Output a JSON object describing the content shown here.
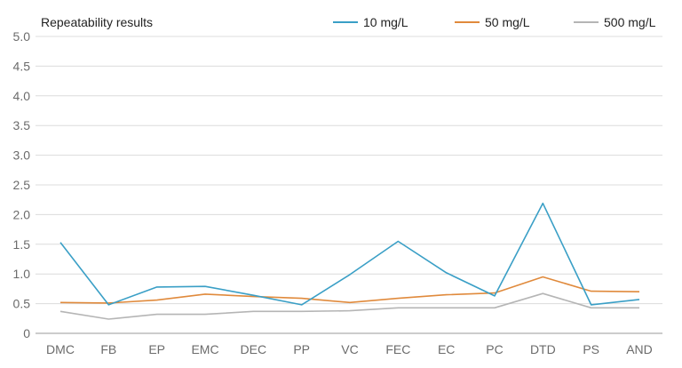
{
  "chart_data": {
    "type": "line",
    "title": "Repeatability results",
    "xlabel": "",
    "ylabel": "",
    "ylim": [
      0,
      5
    ],
    "yticks": [
      "0",
      "0.5",
      "1.0",
      "1.5",
      "2.0",
      "2.5",
      "3.0",
      "3.5",
      "4.0",
      "4.5",
      "5.0"
    ],
    "grid": true,
    "legend_position": "top-right",
    "categories": [
      "DMC",
      "FB",
      "EP",
      "EMC",
      "DEC",
      "PP",
      "VC",
      "FEC",
      "EC",
      "PC",
      "DTD",
      "PS",
      "AND"
    ],
    "series": [
      {
        "name": "10 mg/L",
        "color": "#3a9fc6",
        "values": [
          1.53,
          0.48,
          0.78,
          0.79,
          0.64,
          0.48,
          0.99,
          1.55,
          1.02,
          0.63,
          2.19,
          0.48,
          0.57
        ]
      },
      {
        "name": "50 mg/L",
        "color": "#e08a3c",
        "values": [
          0.52,
          0.51,
          0.56,
          0.66,
          0.62,
          0.59,
          0.52,
          0.59,
          0.65,
          0.68,
          0.95,
          0.71,
          0.7
        ]
      },
      {
        "name": "500 mg/L",
        "color": "#b5b5b5",
        "values": [
          0.37,
          0.24,
          0.32,
          0.32,
          0.37,
          0.37,
          0.38,
          0.43,
          0.43,
          0.43,
          0.67,
          0.43,
          0.43
        ]
      }
    ]
  }
}
